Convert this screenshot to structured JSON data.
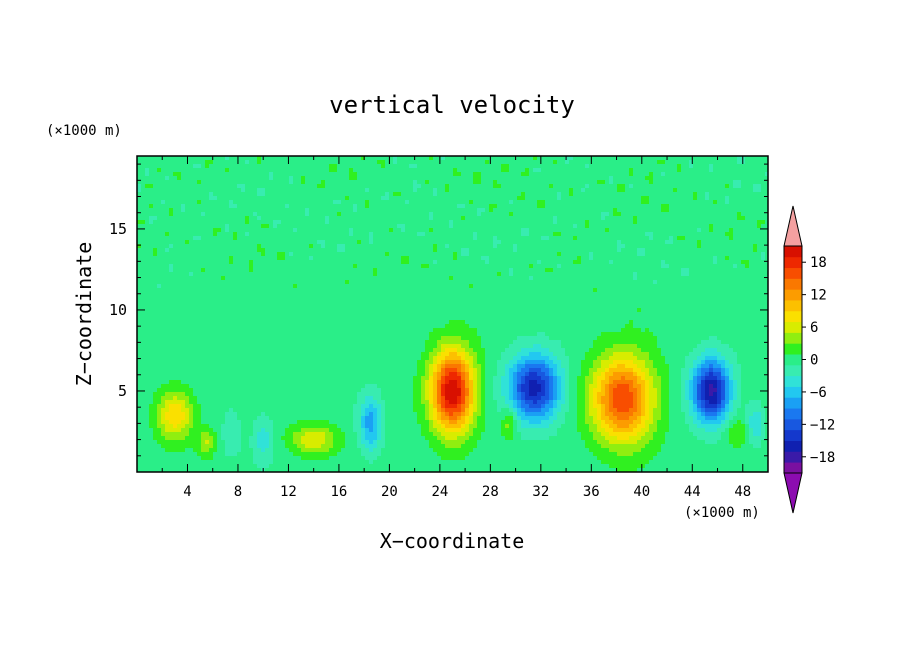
{
  "chart_data": {
    "type": "heatmap",
    "title": "vertical velocity",
    "xlabel": "X−coordinate",
    "ylabel": "Z−coordinate",
    "x_unit": "(×1000 m)",
    "y_unit": "(×1000 m)",
    "xlim": [
      0,
      50
    ],
    "ylim": [
      0,
      19.5
    ],
    "x_ticks": [
      4,
      8,
      12,
      16,
      20,
      24,
      28,
      32,
      36,
      40,
      44,
      48
    ],
    "x_tick_labels": [
      "4",
      "8",
      "12",
      "16",
      "20",
      "24",
      "28",
      "32",
      "36",
      "40",
      "44",
      "48"
    ],
    "y_ticks": [
      5,
      10,
      15
    ],
    "y_tick_labels": [
      "5",
      "10",
      "15"
    ],
    "colorbar": {
      "range": [
        -21,
        21
      ],
      "step": 2,
      "tick_values": [
        -18,
        -12,
        -6,
        0,
        6,
        12,
        18
      ],
      "tick_labels": [
        "−18",
        "−12",
        "−6",
        "0",
        "6",
        "12",
        "18"
      ],
      "colors": [
        "#7a10a0",
        "#3a1aa8",
        "#1020b0",
        "#1438cc",
        "#1858e0",
        "#1a78f0",
        "#1aa0f4",
        "#22c8f0",
        "#30e2d8",
        "#38ecb0",
        "#2aee88",
        "#30f020",
        "#90ee10",
        "#d8ec00",
        "#fae000",
        "#fcc000",
        "#fc9c00",
        "#fa7800",
        "#f84e00",
        "#ee2800",
        "#d81000"
      ],
      "under_color": "#8c0cb0",
      "over_color": "#f4a0a0"
    },
    "features": [
      {
        "x": 25.0,
        "z": 5.0,
        "sx": 1.7,
        "sz": 2.5,
        "amp": 21
      },
      {
        "x": 38.5,
        "z": 4.5,
        "sx": 2.4,
        "sz": 2.6,
        "amp": 17
      },
      {
        "x": 31.5,
        "z": 5.2,
        "sx": 2.0,
        "sz": 2.0,
        "amp": -16
      },
      {
        "x": 45.5,
        "z": 5.0,
        "sx": 1.5,
        "sz": 1.9,
        "amp": -18
      },
      {
        "x": 18.5,
        "z": 3.0,
        "sx": 0.9,
        "sz": 1.7,
        "amp": -8
      },
      {
        "x": 3.0,
        "z": 3.5,
        "sx": 1.4,
        "sz": 1.5,
        "amp": 9
      },
      {
        "x": 5.5,
        "z": 1.8,
        "sx": 0.7,
        "sz": 0.8,
        "amp": 5
      },
      {
        "x": 14.0,
        "z": 2.0,
        "sx": 1.8,
        "sz": 0.9,
        "amp": 7
      },
      {
        "x": 10.0,
        "z": 2.0,
        "sx": 0.8,
        "sz": 1.5,
        "amp": -4
      },
      {
        "x": 7.5,
        "z": 2.5,
        "sx": 0.8,
        "sz": 1.6,
        "amp": -2.5
      },
      {
        "x": 29.5,
        "z": 3.0,
        "sx": 0.6,
        "sz": 1.0,
        "amp": 5
      },
      {
        "x": 47.5,
        "z": 2.5,
        "sx": 0.9,
        "sz": 1.0,
        "amp": 3
      },
      {
        "x": 49.0,
        "z": 3.0,
        "sx": 0.7,
        "sz": 1.2,
        "amp": -5
      }
    ]
  }
}
